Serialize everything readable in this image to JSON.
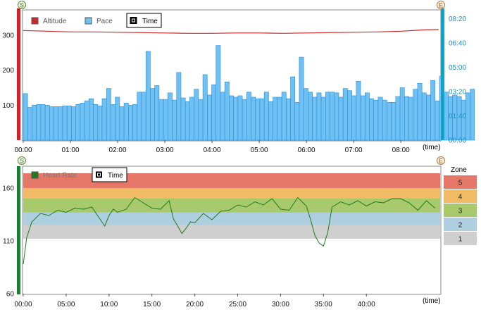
{
  "colors": {
    "altitude": "#cc2a2a",
    "pace_fill": "#6fc0f3",
    "pace_stroke": "#2a8fd6",
    "pace_axis": "#12a2c9",
    "heart_rate": "#1f7a1f",
    "zone5": "#e47767",
    "zone4": "#f1bb66",
    "zone3": "#a9c96d",
    "zone2": "#adcfe0",
    "zone1": "#cfcfcf",
    "hr_axis_bar": "#1a7f2f",
    "altitude_axis_bar": "#d41f26"
  },
  "top_chart": {
    "legend": [
      {
        "label": "Altitude",
        "icon": "red-square-icon"
      },
      {
        "label": "Pace",
        "icon": "blue-square-icon"
      },
      {
        "label": "Time",
        "icon": "black-square-icon",
        "boxed": true
      }
    ],
    "x_unit": "(time)",
    "badge_left": "S",
    "badge_right": "E"
  },
  "bottom_chart": {
    "legend": [
      {
        "label": "Heart Rate",
        "icon": "green-square-icon"
      },
      {
        "label": "Time",
        "icon": "black-square-icon",
        "boxed": true
      }
    ],
    "x_unit": "(time)",
    "badge_left": "S",
    "badge_right": "E",
    "zone_title": "Zone",
    "zones": [
      {
        "label": "5",
        "lo": 160,
        "hi": 174
      },
      {
        "label": "4",
        "lo": 150,
        "hi": 160
      },
      {
        "label": "3",
        "lo": 137,
        "hi": 150
      },
      {
        "label": "2",
        "lo": 125,
        "hi": 137
      },
      {
        "label": "1",
        "lo": 112,
        "hi": 125
      }
    ]
  },
  "chart_data": [
    {
      "type": "bar",
      "x_ticks": [
        "00:00",
        "01:00",
        "02:00",
        "03:00",
        "04:00",
        "05:00",
        "06:00",
        "07:00",
        "08:00"
      ],
      "x_range_minutes": [
        0,
        530
      ],
      "left_axis": {
        "ticks": [
          "100",
          "200",
          "300"
        ],
        "tick_values": [
          100,
          200,
          300
        ],
        "range": [
          0,
          370
        ]
      },
      "right_axis": {
        "ticks": [
          "00:00",
          "01:40",
          "03:20",
          "05:00",
          "06:40",
          "08:20"
        ],
        "range": [
          0,
          8.9
        ]
      },
      "series": [
        {
          "name": "Altitude",
          "type": "line",
          "axis": "left",
          "x_minutes": [
            0,
            30,
            60,
            90,
            120,
            150,
            180,
            210,
            240,
            270,
            300,
            330,
            360,
            390,
            420,
            450,
            480,
            510,
            528
          ],
          "values": [
            313,
            311,
            309,
            309,
            308,
            307,
            306,
            305,
            305,
            306,
            306,
            305,
            306,
            307,
            308,
            309,
            311,
            315,
            316
          ]
        },
        {
          "name": "Pace",
          "type": "bar",
          "axis": "right",
          "start_minute": 0,
          "bar_width_minutes": 5.57,
          "values": [
            3.2,
            2.25,
            2.4,
            2.45,
            2.45,
            2.4,
            2.3,
            2.3,
            2.3,
            2.35,
            2.35,
            2.3,
            2.45,
            2.55,
            2.7,
            2.85,
            2.45,
            2.35,
            2.85,
            3.55,
            2.45,
            2.95,
            2.3,
            2.55,
            2.4,
            2.45,
            3.3,
            3.3,
            6.1,
            3.55,
            3.75,
            2.8,
            2.8,
            3.25,
            2.75,
            4.65,
            2.9,
            2.65,
            2.95,
            3.5,
            2.8,
            4.5,
            3.1,
            3.8,
            6.5,
            3.3,
            4.0,
            3.05,
            2.95,
            3.05,
            2.8,
            3.3,
            2.95,
            2.85,
            2.85,
            3.3,
            2.65,
            2.95,
            2.95,
            3.3,
            2.85,
            4.35,
            2.6,
            5.7,
            3.55,
            3.3,
            2.95,
            3.25,
            2.95,
            3.3,
            3.3,
            3.25,
            2.95,
            3.55,
            3.4,
            3.05,
            4.05,
            3.05,
            3.25,
            2.85,
            2.75,
            2.95,
            2.75,
            2.6,
            2.6,
            3.0,
            3.6,
            3.0,
            2.95,
            3.5,
            3.9,
            3.25,
            3.1,
            4.1,
            2.7,
            4.4,
            3.3,
            3.0,
            3.1,
            3.0,
            2.75,
            3.25,
            3.5
          ]
        }
      ]
    },
    {
      "type": "line",
      "x_ticks": [
        "00:00",
        "05:00",
        "10:00",
        "15:00",
        "20:00",
        "25:00",
        "30:00",
        "35:00",
        "40:00"
      ],
      "x_range_minutes": [
        0,
        48.6
      ],
      "y_axis": {
        "ticks": [
          "60",
          "110",
          "160"
        ],
        "tick_values": [
          60,
          110,
          160
        ],
        "range": [
          60,
          180
        ]
      },
      "series": [
        {
          "name": "Heart Rate",
          "x_minutes": [
            0,
            0.4,
            1,
            2,
            3,
            4,
            5,
            6,
            7,
            8,
            9,
            9.5,
            10,
            10.5,
            11,
            12,
            13,
            14,
            15,
            16,
            17,
            17.5,
            18,
            18.5,
            19,
            19.5,
            20,
            21,
            22,
            23,
            24,
            25,
            26,
            27,
            28,
            29,
            30,
            31,
            32,
            33,
            33.5,
            34,
            34.5,
            35,
            35.5,
            36,
            37,
            38,
            39,
            40,
            41,
            42,
            43,
            44,
            45,
            46,
            47,
            48
          ],
          "values": [
            88,
            113,
            128,
            136,
            134,
            139,
            137,
            141,
            140,
            142,
            130,
            124,
            134,
            140,
            137,
            140,
            151,
            146,
            141,
            140,
            148,
            131,
            124,
            117,
            122,
            128,
            127,
            136,
            130,
            138,
            139,
            144,
            142,
            147,
            144,
            150,
            140,
            139,
            151,
            143,
            130,
            115,
            108,
            105,
            118,
            142,
            147,
            144,
            148,
            143,
            147,
            146,
            150,
            150,
            146,
            139,
            148,
            141
          ]
        }
      ]
    }
  ]
}
